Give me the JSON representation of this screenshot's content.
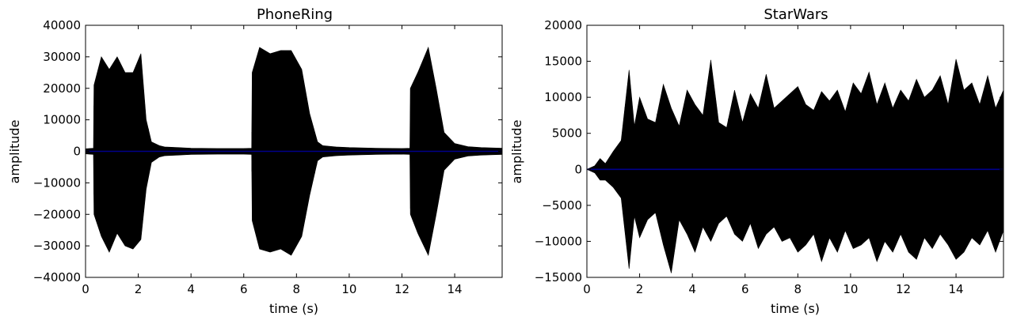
{
  "figure": {
    "background": "#ffffff",
    "waveform_color": "#000000",
    "mean_line_color": "#00008b"
  },
  "chart_data": [
    {
      "type": "line",
      "title": "PhoneRing",
      "xlabel": "time (s)",
      "ylabel": "amplitude",
      "xlim": [
        0,
        15.8
      ],
      "ylim": [
        -40000,
        40000
      ],
      "xticks": [
        0,
        2,
        4,
        6,
        8,
        10,
        12,
        14
      ],
      "xtick_labels": [
        "0",
        "2",
        "4",
        "6",
        "8",
        "10",
        "12",
        "14"
      ],
      "yticks": [
        -40000,
        -30000,
        -20000,
        -10000,
        0,
        10000,
        20000,
        30000,
        40000
      ],
      "ytick_labels": [
        "−40000",
        "−30000",
        "−20000",
        "−10000",
        "0",
        "10000",
        "20000",
        "30000",
        "40000"
      ],
      "grid": false,
      "series": [
        {
          "kind": "amplitude_envelope",
          "color": "#000000",
          "x": [
            0.0,
            0.3,
            0.32,
            0.6,
            0.9,
            1.2,
            1.5,
            1.8,
            2.1,
            2.3,
            2.5,
            2.8,
            3.0,
            3.5,
            4.0,
            5.0,
            6.0,
            6.3,
            6.32,
            6.6,
            7.0,
            7.4,
            7.8,
            8.2,
            8.5,
            8.8,
            9.0,
            9.5,
            10.0,
            11.0,
            12.0,
            12.3,
            12.32,
            12.6,
            13.0,
            13.3,
            13.6,
            14.0,
            14.5,
            15.0,
            15.8
          ],
          "upper": [
            800,
            1000,
            21000,
            30000,
            26000,
            30000,
            25000,
            25000,
            31000,
            10000,
            3000,
            1800,
            1400,
            1200,
            1000,
            900,
            900,
            1000,
            25000,
            33000,
            31000,
            32000,
            32000,
            26000,
            12000,
            3000,
            1800,
            1400,
            1200,
            1000,
            900,
            1000,
            20000,
            25000,
            33000,
            20000,
            6000,
            2500,
            1500,
            1200,
            1000
          ],
          "lower": [
            -800,
            -1000,
            -20000,
            -27000,
            -32000,
            -26000,
            -30000,
            -31000,
            -28000,
            -12000,
            -3500,
            -1800,
            -1400,
            -1200,
            -1000,
            -900,
            -900,
            -1000,
            -22000,
            -31000,
            -32000,
            -31000,
            -33000,
            -27000,
            -14000,
            -3000,
            -1800,
            -1400,
            -1200,
            -1000,
            -900,
            -1000,
            -20000,
            -26000,
            -33000,
            -20000,
            -6000,
            -2500,
            -1500,
            -1200,
            -1000
          ]
        },
        {
          "kind": "mean_line",
          "color": "#00008b",
          "y": 0
        }
      ]
    },
    {
      "type": "line",
      "title": "StarWars",
      "xlabel": "time (s)",
      "ylabel": "amplitude",
      "xlim": [
        0,
        15.8
      ],
      "ylim": [
        -15000,
        20000
      ],
      "xticks": [
        0,
        2,
        4,
        6,
        8,
        10,
        12,
        14
      ],
      "xtick_labels": [
        "0",
        "2",
        "4",
        "6",
        "8",
        "10",
        "12",
        "14"
      ],
      "yticks": [
        -15000,
        -10000,
        -5000,
        0,
        5000,
        10000,
        15000,
        20000
      ],
      "ytick_labels": [
        "−15000",
        "−10000",
        "−5000",
        "0",
        "5000",
        "10000",
        "15000",
        "20000"
      ],
      "grid": false,
      "series": [
        {
          "kind": "amplitude_envelope",
          "color": "#000000",
          "x": [
            0.0,
            0.3,
            0.5,
            0.7,
            1.0,
            1.3,
            1.6,
            1.8,
            2.0,
            2.3,
            2.6,
            2.9,
            3.2,
            3.5,
            3.8,
            4.1,
            4.4,
            4.7,
            5.0,
            5.3,
            5.6,
            5.9,
            6.2,
            6.5,
            6.8,
            7.1,
            7.4,
            7.7,
            8.0,
            8.3,
            8.6,
            8.9,
            9.2,
            9.5,
            9.8,
            10.1,
            10.4,
            10.7,
            11.0,
            11.3,
            11.6,
            11.9,
            12.2,
            12.5,
            12.8,
            13.1,
            13.4,
            13.7,
            14.0,
            14.3,
            14.6,
            14.9,
            15.2,
            15.5,
            15.8
          ],
          "upper": [
            0,
            500,
            1500,
            800,
            2500,
            4000,
            13800,
            6000,
            10000,
            7000,
            6500,
            11800,
            8500,
            6000,
            11000,
            9000,
            7500,
            15200,
            6500,
            5800,
            11000,
            6500,
            10500,
            8500,
            13200,
            8500,
            9500,
            10500,
            11500,
            9000,
            8200,
            10800,
            9500,
            11000,
            8000,
            12000,
            10500,
            13500,
            9000,
            12000,
            8500,
            11000,
            9500,
            12500,
            10000,
            11000,
            13000,
            9000,
            15300,
            11000,
            12000,
            9000,
            13000,
            8500,
            11000
          ],
          "lower": [
            0,
            -500,
            -1500,
            -1500,
            -2500,
            -4000,
            -13800,
            -6500,
            -9500,
            -7000,
            -6000,
            -10500,
            -14400,
            -7000,
            -9000,
            -11500,
            -8000,
            -10000,
            -7500,
            -6500,
            -9000,
            -10000,
            -7500,
            -11000,
            -9000,
            -8000,
            -10000,
            -9500,
            -11500,
            -10500,
            -9000,
            -12800,
            -9500,
            -11500,
            -8500,
            -11000,
            -10500,
            -9500,
            -12800,
            -10000,
            -11500,
            -9000,
            -11500,
            -12500,
            -9500,
            -11000,
            -9000,
            -10500,
            -12500,
            -11500,
            -9500,
            -10500,
            -8500,
            -11500,
            -8500
          ]
        },
        {
          "kind": "mean_line",
          "color": "#00008b",
          "y": 0
        }
      ]
    }
  ]
}
